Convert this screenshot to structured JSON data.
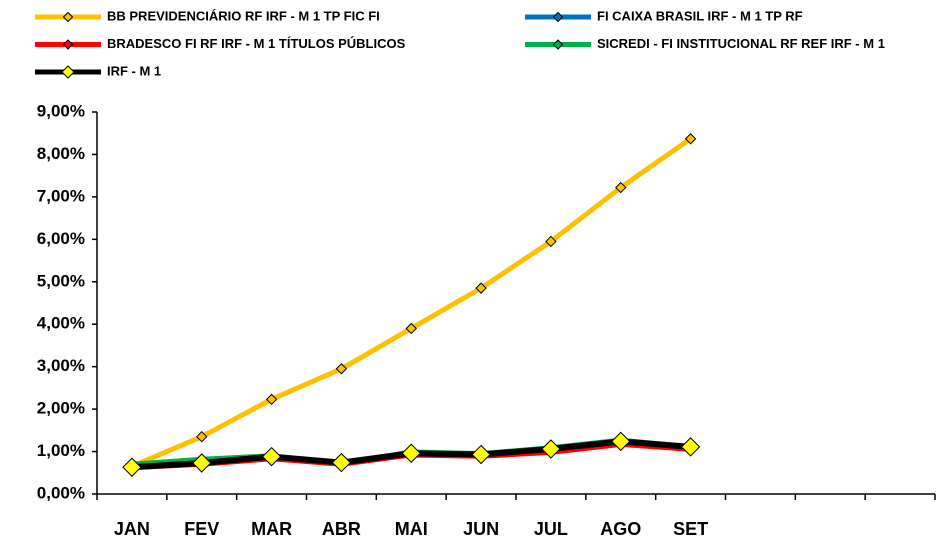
{
  "chart_data": {
    "type": "line",
    "categories": [
      "JAN",
      "FEV",
      "MAR",
      "ABR",
      "MAI",
      "JUN",
      "JUL",
      "AGO",
      "SET",
      null,
      null,
      null
    ],
    "series": [
      {
        "name": "BB PREVIDENCIÁRIO RF IRF - M 1 TP FIC FI",
        "color": "#FFC000",
        "marker_color": "#FFC000",
        "values": [
          0.65,
          1.35,
          2.23,
          2.95,
          3.9,
          4.85,
          5.95,
          7.22,
          8.37,
          null,
          null,
          null
        ]
      },
      {
        "name": "FI CAIXA BRASIL IRF - M 1 TP RF",
        "color": "#0070C0",
        "marker_color": "#0070C0",
        "values": [
          0.64,
          0.74,
          0.87,
          0.73,
          0.95,
          0.92,
          1.05,
          1.2,
          1.1,
          null,
          null,
          null
        ]
      },
      {
        "name": "BRADESCO FI RF IRF - M 1 TÍTULOS PÚBLICOS",
        "color": "#FF0000",
        "marker_color": "#FF0000",
        "values": [
          0.62,
          0.7,
          0.83,
          0.7,
          0.92,
          0.89,
          0.98,
          1.17,
          1.05,
          null,
          null,
          null
        ]
      },
      {
        "name": "SICREDI - FI INSTITUCIONAL RF REF IRF - M 1",
        "color": "#00B050",
        "marker_color": "#00B050",
        "values": [
          0.7,
          0.82,
          0.9,
          0.72,
          0.99,
          0.95,
          1.09,
          1.27,
          1.11,
          null,
          null,
          null
        ]
      },
      {
        "name": "IRF - M 1",
        "color": "#000000",
        "marker_color": "#FFFF00",
        "values": [
          0.63,
          0.73,
          0.88,
          0.74,
          0.96,
          0.93,
          1.06,
          1.24,
          1.11,
          null,
          null,
          null
        ]
      }
    ],
    "ylim": [
      0,
      9
    ],
    "yticks": [
      {
        "value": 0,
        "label": "0,00%"
      },
      {
        "value": 1,
        "label": "1,00%"
      },
      {
        "value": 2,
        "label": "2,00%"
      },
      {
        "value": 3,
        "label": "3,00%"
      },
      {
        "value": 4,
        "label": "4,00%"
      },
      {
        "value": 5,
        "label": "5,00%"
      },
      {
        "value": 6,
        "label": "6,00%"
      },
      {
        "value": 7,
        "label": "7,00%"
      },
      {
        "value": 8,
        "label": "8,00%"
      },
      {
        "value": 9,
        "label": "9,00%"
      }
    ],
    "grid": false,
    "legend": "top"
  }
}
